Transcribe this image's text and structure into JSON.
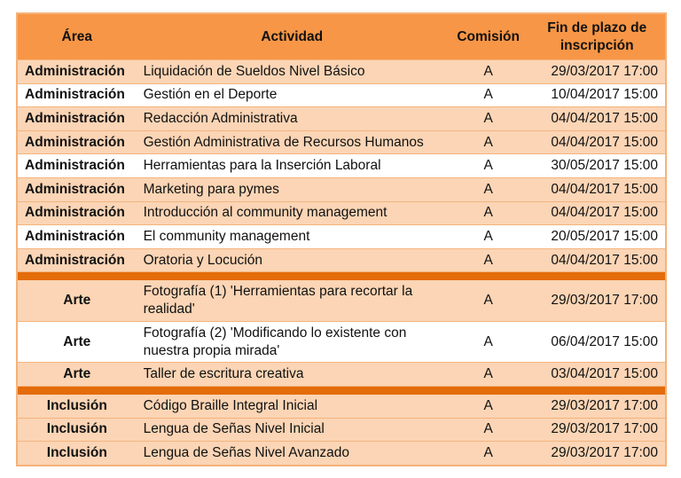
{
  "colors": {
    "header": "#f79646",
    "separator": "#e46c0a",
    "row_peach": "#fbd5b5",
    "row_white": "#ffffff"
  },
  "header": {
    "area": "Área",
    "actividad": "Actividad",
    "comision": "Comisión",
    "fin": "Fin de plazo de inscripción"
  },
  "groups": [
    {
      "rows": [
        {
          "area": "Administración",
          "actividad": "Liquidación de Sueldos Nivel Básico",
          "comision": "A",
          "fin": "29/03/2017 17:00",
          "shade": "peach"
        },
        {
          "area": "Administración",
          "actividad": "Gestión en el Deporte",
          "comision": "A",
          "fin": "10/04/2017 15:00",
          "shade": "white"
        },
        {
          "area": "Administración",
          "actividad": "Redacción Administrativa",
          "comision": "A",
          "fin": "04/04/2017 15:00",
          "shade": "peach"
        },
        {
          "area": "Administración",
          "actividad": "Gestión Administrativa de Recursos Humanos",
          "comision": "A",
          "fin": "04/04/2017 15:00",
          "shade": "peach"
        },
        {
          "area": "Administración",
          "actividad": "Herramientas para la Inserción Laboral",
          "comision": "A",
          "fin": "30/05/2017 15:00",
          "shade": "white"
        },
        {
          "area": "Administración",
          "actividad": "Marketing para pymes",
          "comision": "A",
          "fin": "04/04/2017 15:00",
          "shade": "peach"
        },
        {
          "area": "Administración",
          "actividad": "Introducción al community management",
          "comision": "A",
          "fin": "04/04/2017 15:00",
          "shade": "peach"
        },
        {
          "area": "Administración",
          "actividad": "El community management",
          "comision": "A",
          "fin": "20/05/2017 15:00",
          "shade": "white"
        },
        {
          "area": "Administración",
          "actividad": "Oratoria y Locución",
          "comision": "A",
          "fin": "04/04/2017 15:00",
          "shade": "peach"
        }
      ]
    },
    {
      "rows": [
        {
          "area": "Arte",
          "actividad": "Fotografía (1) 'Herramientas para recortar la realidad'",
          "comision": "A",
          "fin": "29/03/2017 17:00",
          "shade": "peach",
          "tall": true
        },
        {
          "area": "Arte",
          "actividad": "Fotografía (2) 'Modificando lo existente con nuestra propia mirada'",
          "comision": "A",
          "fin": "06/04/2017 15:00",
          "shade": "white",
          "tall": true
        },
        {
          "area": "Arte",
          "actividad": "Taller de escritura creativa",
          "comision": "A",
          "fin": "03/04/2017 15:00",
          "shade": "peach"
        }
      ]
    },
    {
      "rows": [
        {
          "area": "Inclusión",
          "actividad": "Código Braille Integral Inicial",
          "comision": "A",
          "fin": "29/03/2017 17:00",
          "shade": "peach"
        },
        {
          "area": "Inclusión",
          "actividad": "Lengua de Señas Nivel Inicial",
          "comision": "A",
          "fin": "29/03/2017 17:00",
          "shade": "peach"
        },
        {
          "area": "Inclusión",
          "actividad": "Lengua de Señas Nivel Avanzado",
          "comision": "A",
          "fin": "29/03/2017 17:00",
          "shade": "peach"
        }
      ]
    }
  ]
}
